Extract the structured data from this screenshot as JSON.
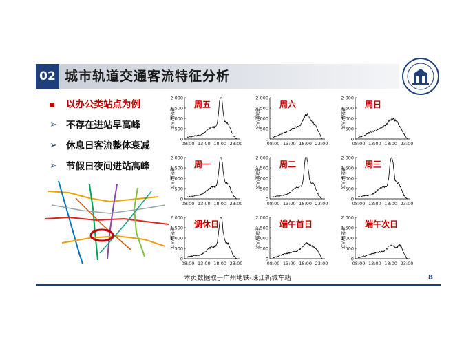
{
  "section": {
    "number": "02",
    "title": "城市轨道交通客流特征分析"
  },
  "bullets": [
    {
      "marker": "square",
      "text": "以办公类站点为例"
    },
    {
      "marker": "chevron",
      "glyph": "➢",
      "text": "不存在进站早高峰"
    },
    {
      "marker": "chevron",
      "glyph": "➢",
      "text": "休息日客流整体衰减"
    },
    {
      "marker": "chevron",
      "glyph": "➢",
      "text": "节假日夜间进站高峰"
    }
  ],
  "colors": {
    "accent": "#1e3f7a",
    "highlight": "#c00000",
    "line": "#000000"
  },
  "charts_common": {
    "yticks": [
      "2 000",
      "1 500",
      "1 000",
      "500",
      "0"
    ],
    "xticks": [
      "08:00",
      "13:00",
      "18:00",
      "23:00"
    ],
    "ylabel": "进站量/人次"
  },
  "chart_data": [
    {
      "type": "line",
      "title": "周五",
      "profile": "weekday"
    },
    {
      "type": "line",
      "title": "周六",
      "profile": "sat"
    },
    {
      "type": "line",
      "title": "周日",
      "profile": "sun"
    },
    {
      "type": "line",
      "title": "周一",
      "profile": "weekday"
    },
    {
      "type": "line",
      "title": "周二",
      "profile": "weekday"
    },
    {
      "type": "line",
      "title": "周三",
      "profile": "weekday"
    },
    {
      "type": "line",
      "title": "调休日",
      "profile": "weekday"
    },
    {
      "type": "line",
      "title": "端午首日",
      "profile": "holiday1"
    },
    {
      "type": "line",
      "title": "端午次日",
      "profile": "holiday2"
    }
  ],
  "footer": {
    "note": "本页数据取于广州地铁-珠江新城车站",
    "page": "8"
  }
}
